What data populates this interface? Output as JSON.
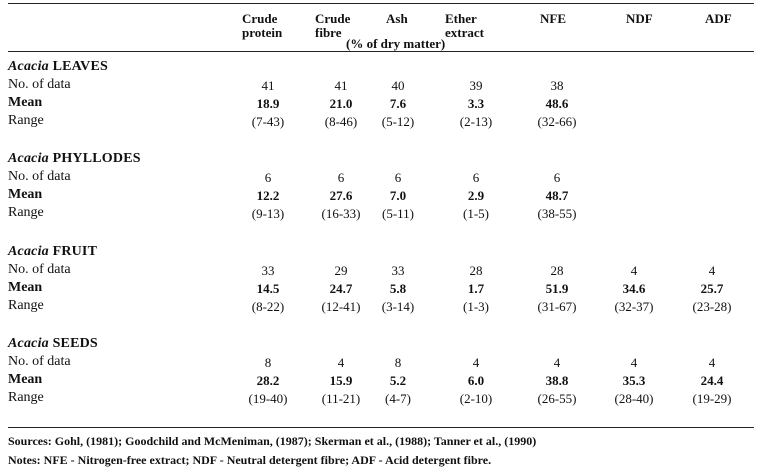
{
  "header": {
    "columns": [
      "Crude protein",
      "Crude fibre",
      "Ash",
      "Ether extract",
      "NFE",
      "NDF",
      "ADF"
    ],
    "col_lines": [
      [
        "Crude",
        "protein"
      ],
      [
        "Crude",
        "fibre"
      ],
      [
        "Ash",
        ""
      ],
      [
        "Ether",
        "extract"
      ],
      [
        "NFE",
        ""
      ],
      [
        "NDF",
        ""
      ],
      [
        "ADF",
        ""
      ]
    ],
    "units_note": "(% of dry matter)"
  },
  "sections": [
    {
      "genus": "Acacia",
      "part": "LEAVES",
      "rows": [
        {
          "label": "No. of data",
          "values": [
            "41",
            "41",
            "40",
            "39",
            "38",
            "",
            ""
          ]
        },
        {
          "label": "Mean",
          "values": [
            "18.9",
            "21.0",
            "7.6",
            "3.3",
            "48.6",
            "",
            ""
          ]
        },
        {
          "label": "Range",
          "values": [
            "(7-43)",
            "(8-46)",
            "(5-12)",
            "(2-13)",
            "(32-66)",
            "",
            ""
          ]
        }
      ]
    },
    {
      "genus": "Acacia",
      "part": "PHYLLODES",
      "rows": [
        {
          "label": "No. of data",
          "values": [
            "6",
            "6",
            "6",
            "6",
            "6",
            "",
            ""
          ]
        },
        {
          "label": "Mean",
          "values": [
            "12.2",
            "27.6",
            "7.0",
            "2.9",
            "48.7",
            "",
            ""
          ]
        },
        {
          "label": "Range",
          "values": [
            "(9-13)",
            "(16-33)",
            "(5-11)",
            "(1-5)",
            "(38-55)",
            "",
            ""
          ]
        }
      ]
    },
    {
      "genus": "Acacia",
      "part": "FRUIT",
      "rows": [
        {
          "label": "No. of data",
          "values": [
            "33",
            "29",
            "33",
            "28",
            "28",
            "4",
            "4"
          ]
        },
        {
          "label": "Mean",
          "values": [
            "14.5",
            "24.7",
            "5.8",
            "1.7",
            "51.9",
            "34.6",
            "25.7"
          ]
        },
        {
          "label": "Range",
          "values": [
            "(8-22)",
            "(12-41)",
            "(3-14)",
            "(1-3)",
            "(31-67)",
            "(32-37)",
            "(23-28)"
          ]
        }
      ]
    },
    {
      "genus": "Acacia",
      "part": "SEEDS",
      "rows": [
        {
          "label": "No. of data",
          "values": [
            "8",
            "4",
            "8",
            "4",
            "4",
            "4",
            "4"
          ]
        },
        {
          "label": "Mean",
          "values": [
            "28.2",
            "15.9",
            "5.2",
            "6.0",
            "38.8",
            "35.3",
            "24.4"
          ]
        },
        {
          "label": "Range",
          "values": [
            "(19-40)",
            "(11-21)",
            "(4-7)",
            "(2-10)",
            "(26-55)",
            "(28-40)",
            "(19-29)"
          ]
        }
      ]
    }
  ],
  "footer": {
    "sources": "Sources: Gohl, (1981); Goodchild and McMeniman, (1987); Skerman et al., (1988); Tanner et al., (1990)",
    "notes": "Notes: NFE - Nitrogen-free extract; NDF - Neutral detergent fibre; ADF - Acid detergent fibre."
  }
}
